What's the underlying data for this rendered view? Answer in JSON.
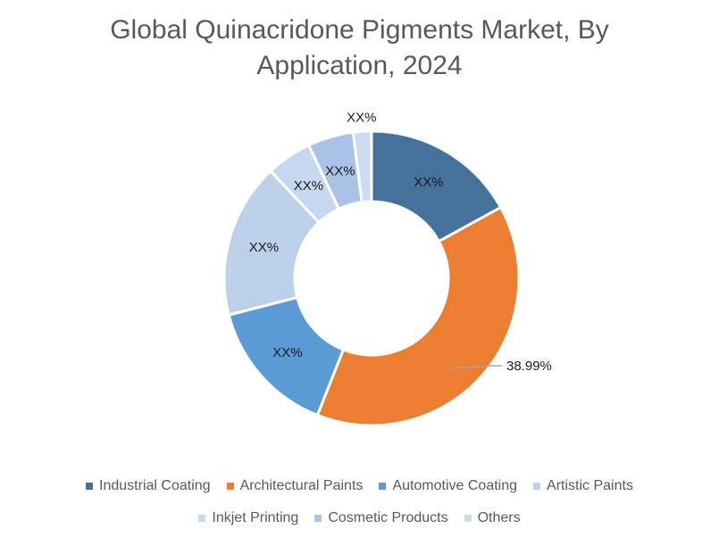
{
  "chart_data": {
    "type": "pie",
    "title_lines": [
      "Global Quinacridone Pigments Market, By",
      "Application, 2024"
    ],
    "title": "Global Quinacridone Pigments Market, By Application, 2024",
    "donut": true,
    "categories": [
      "Industrial Coating",
      "Architectural Paints",
      "Automotive Coating",
      "Artistic Paints",
      "Inkjet Printing",
      "Cosmetic Products",
      "Others"
    ],
    "values": [
      17.0,
      38.99,
      15.0,
      17.0,
      5.0,
      5.01,
      2.0
    ],
    "labels": [
      "XX%",
      "38.99%",
      "XX%",
      "XX%",
      "XX%",
      "XX%",
      "XX%"
    ],
    "colors": [
      "#44729b",
      "#ed7d31",
      "#5b9bd5",
      "#bdd0ea",
      "#c6d8ef",
      "#a9c2e6",
      "#ccdcf0"
    ],
    "legend_position": "bottom"
  }
}
